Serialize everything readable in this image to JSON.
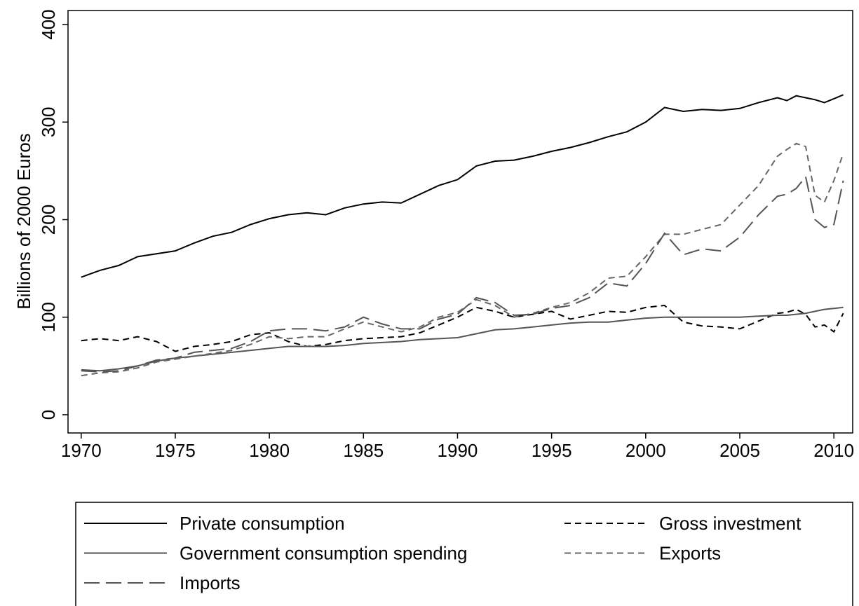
{
  "chart_data": {
    "type": "line",
    "ylabel": "Billions of 2000 Euros",
    "x": [
      1970,
      1971,
      1972,
      1973,
      1974,
      1975,
      1976,
      1977,
      1978,
      1979,
      1980,
      1981,
      1982,
      1983,
      1984,
      1985,
      1986,
      1987,
      1988,
      1989,
      1990,
      1991,
      1992,
      1993,
      1994,
      1995,
      1996,
      1997,
      1998,
      1999,
      2000,
      2001,
      2002,
      2003,
      2004,
      2005,
      2006,
      2007,
      2007.5,
      2008,
      2008.5,
      2009,
      2009.5,
      2010,
      2010.5
    ],
    "series": [
      {
        "name": "Private consumption",
        "color": "#000000",
        "line_style": "solid",
        "values": [
          141,
          148,
          153,
          162,
          165,
          168,
          176,
          183,
          187,
          195,
          201,
          205,
          207,
          205,
          212,
          216,
          218,
          217,
          226,
          235,
          241,
          255,
          260,
          261,
          265,
          270,
          274,
          279,
          285,
          290,
          300,
          315,
          311,
          313,
          312,
          314,
          320,
          325,
          322,
          327,
          325,
          323,
          320,
          324,
          328
        ]
      },
      {
        "name": "Gross investment",
        "color": "#000000",
        "line_style": "dashed",
        "values": [
          76,
          78,
          76,
          80,
          75,
          65,
          70,
          72,
          75,
          82,
          84,
          75,
          70,
          72,
          76,
          78,
          79,
          80,
          84,
          92,
          100,
          110,
          106,
          100,
          103,
          106,
          98,
          102,
          106,
          105,
          110,
          112,
          95,
          91,
          90,
          88,
          96,
          104,
          105,
          108,
          103,
          90,
          92,
          85,
          104
        ]
      },
      {
        "name": "Government consumption spending",
        "color": "#555555",
        "line_style": "solid",
        "values": [
          46,
          45,
          47,
          50,
          55,
          58,
          60,
          62,
          64,
          66,
          68,
          70,
          70,
          70,
          71,
          73,
          74,
          75,
          77,
          78,
          79,
          83,
          87,
          88,
          90,
          92,
          94,
          95,
          95,
          97,
          99,
          100,
          100,
          100,
          100,
          100,
          101,
          102,
          102,
          103,
          104,
          106,
          108,
          109,
          110
        ]
      },
      {
        "name": "Exports",
        "color": "#666666",
        "line_style": "dashed",
        "values": [
          40,
          43,
          44,
          48,
          54,
          57,
          60,
          63,
          66,
          72,
          80,
          78,
          80,
          80,
          88,
          95,
          90,
          85,
          90,
          100,
          105,
          118,
          112,
          100,
          104,
          110,
          115,
          125,
          140,
          142,
          162,
          185,
          185,
          190,
          195,
          215,
          235,
          265,
          272,
          278,
          275,
          225,
          218,
          240,
          268
        ]
      },
      {
        "name": "Imports",
        "color": "#555555",
        "line_style": "long-dashed",
        "values": [
          45,
          44,
          45,
          50,
          56,
          58,
          64,
          66,
          68,
          75,
          86,
          88,
          88,
          86,
          90,
          100,
          93,
          88,
          88,
          98,
          103,
          120,
          115,
          102,
          103,
          109,
          112,
          120,
          135,
          132,
          155,
          186,
          164,
          170,
          168,
          182,
          205,
          224,
          226,
          232,
          244,
          200,
          192,
          195,
          240
        ]
      }
    ],
    "xlim": [
      1969.3,
      2011.0
    ],
    "ylim": [
      -18.7,
      414.4
    ],
    "xticks": [
      1970,
      1975,
      1980,
      1985,
      1990,
      1995,
      2000,
      2005,
      2010
    ],
    "yticks": [
      0,
      100,
      200,
      300,
      400
    ]
  }
}
